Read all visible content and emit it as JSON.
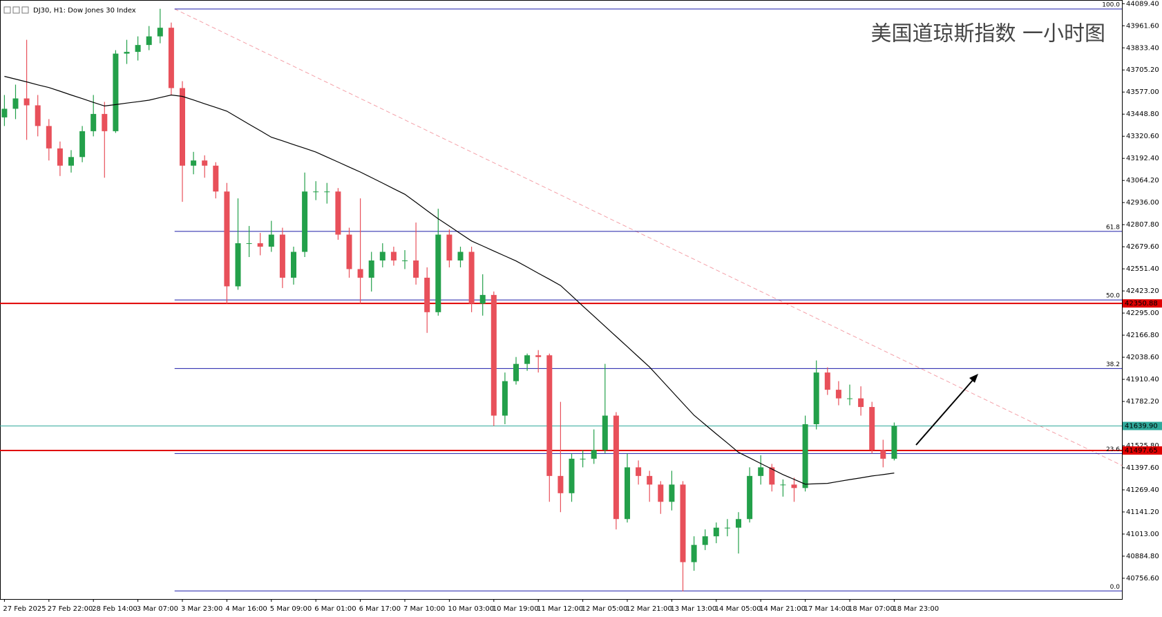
{
  "chart_data": {
    "type": "candlestick",
    "title": "DJ30, H1: Dow Jones 30 Index",
    "annotation": "美国道琼斯指数 一小时图",
    "up_color": "#23a04a",
    "down_color": "#e8505a",
    "open": [
      43430,
      43480,
      43540,
      43500,
      43380,
      43250,
      43150,
      43200,
      43350,
      43450,
      43350,
      43800,
      43810,
      43850,
      43900,
      43950,
      43600,
      43150,
      43180,
      43150,
      43000,
      42450,
      42700,
      42700,
      42680,
      42750,
      42500,
      42650,
      43000,
      43000,
      43000,
      42750,
      42550,
      42500,
      42600,
      42650,
      42600,
      42600,
      42500,
      42300,
      42750,
      42600,
      42650,
      42350,
      42400,
      41700,
      41900,
      42000,
      42050,
      42050,
      41350,
      41250,
      41450,
      41450,
      41500,
      41700,
      41100,
      41400,
      41350,
      41300,
      41200,
      41300,
      40850,
      40950,
      41000,
      41050,
      41050,
      41100,
      41350,
      41400,
      41300,
      41300,
      41280,
      41650,
      41950,
      41850,
      41800,
      41800,
      41750,
      41500,
      41450
    ],
    "high": [
      43560,
      43620,
      43880,
      43560,
      43420,
      43290,
      43240,
      43380,
      43560,
      43520,
      43820,
      43880,
      43900,
      43960,
      44060,
      43980,
      43640,
      43230,
      43210,
      43170,
      43050,
      42960,
      42800,
      42760,
      42830,
      42790,
      42680,
      43110,
      43060,
      43050,
      43020,
      42790,
      42960,
      42650,
      42700,
      42680,
      42660,
      42820,
      42560,
      42900,
      42780,
      42680,
      42680,
      42520,
      42420,
      41950,
      42040,
      42060,
      42080,
      42060,
      41780,
      41480,
      41500,
      41620,
      42000,
      41720,
      41480,
      41440,
      41380,
      41320,
      41380,
      41320,
      41000,
      41040,
      41080,
      41100,
      41140,
      41400,
      41470,
      41420,
      41330,
      41340,
      41700,
      42020,
      41980,
      41900,
      41880,
      41870,
      41780,
      41560,
      41660
    ],
    "low": [
      43380,
      43420,
      43300,
      43320,
      43180,
      43090,
      43110,
      43170,
      43320,
      43080,
      43340,
      43740,
      43760,
      43820,
      43860,
      43560,
      42940,
      43100,
      43080,
      42960,
      42350,
      42430,
      42620,
      42630,
      42650,
      42440,
      42460,
      42620,
      42950,
      42930,
      42720,
      42500,
      42350,
      42420,
      42560,
      42570,
      42550,
      42460,
      42180,
      42280,
      42560,
      42560,
      42300,
      42280,
      41640,
      41650,
      41880,
      41960,
      41950,
      41200,
      41140,
      41200,
      41400,
      41420,
      41480,
      41040,
      41080,
      41300,
      41200,
      41130,
      41150,
      40680,
      40800,
      40920,
      40960,
      41000,
      40900,
      41080,
      41300,
      41260,
      41230,
      41200,
      41260,
      41620,
      41820,
      41760,
      41760,
      41700,
      41480,
      41400,
      41440
    ],
    "close": [
      43480,
      43540,
      43500,
      43380,
      43250,
      43150,
      43200,
      43350,
      43450,
      43350,
      43800,
      43810,
      43850,
      43900,
      43950,
      43600,
      43150,
      43180,
      43150,
      43000,
      42450,
      42700,
      42700,
      42680,
      42750,
      42500,
      42650,
      43000,
      43000,
      43000,
      42750,
      42550,
      42500,
      42600,
      42650,
      42600,
      42600,
      42500,
      42300,
      42750,
      42600,
      42650,
      42350,
      42400,
      41700,
      41900,
      42000,
      42050,
      42040,
      41350,
      41250,
      41450,
      41450,
      41500,
      41700,
      41100,
      41400,
      41350,
      41300,
      41200,
      41300,
      40850,
      40950,
      41000,
      41050,
      41050,
      41100,
      41350,
      41400,
      41300,
      41300,
      41280,
      41650,
      41950,
      41850,
      41800,
      41800,
      41750,
      41500,
      41450,
      41640
    ],
    "ma": {
      "color": "#000000",
      "values": [
        43668,
        43652,
        43636,
        43619,
        43603,
        43582,
        43560,
        43539,
        43517,
        43496,
        43504,
        43513,
        43521,
        43530,
        43545,
        43560,
        43552,
        43531,
        43509,
        43488,
        43466,
        43428,
        43390,
        43353,
        43315,
        43294,
        43272,
        43251,
        43229,
        43200,
        43171,
        43142,
        43113,
        43081,
        43049,
        43016,
        42984,
        42937,
        42889,
        42842,
        42799,
        42756,
        42713,
        42684,
        42655,
        42626,
        42597,
        42562,
        42526,
        42491,
        42455,
        42396,
        42336,
        42277,
        42218,
        42159,
        42100,
        42041,
        41982,
        41912,
        41842,
        41772,
        41702,
        41648,
        41594,
        41541,
        41487,
        41455,
        41422,
        41390,
        41358,
        41330,
        41302,
        41305,
        41307,
        41318,
        41329,
        41339,
        41350,
        41358,
        41367
      ]
    },
    "xticks": [
      {
        "value": 0,
        "label": "27 Feb 2025"
      },
      {
        "value": 4,
        "label": "27 Feb 22:00"
      },
      {
        "value": 8,
        "label": "28 Feb 14:00"
      },
      {
        "value": 12,
        "label": "3 Mar 07:00"
      },
      {
        "value": 16,
        "label": "3 Mar 23:00"
      },
      {
        "value": 20,
        "label": "4 Mar 16:00"
      },
      {
        "value": 24,
        "label": "5 Mar 09:00"
      },
      {
        "value": 28,
        "label": "6 Mar 01:00"
      },
      {
        "value": 32,
        "label": "6 Mar 17:00"
      },
      {
        "value": 36,
        "label": "7 Mar 10:00"
      },
      {
        "value": 40,
        "label": "10 Mar 03:00"
      },
      {
        "value": 44,
        "label": "10 Mar 19:00"
      },
      {
        "value": 48,
        "label": "11 Mar 12:00"
      },
      {
        "value": 52,
        "label": "12 Mar 05:00"
      },
      {
        "value": 56,
        "label": "12 Mar 21:00"
      },
      {
        "value": 60,
        "label": "13 Mar 13:00"
      },
      {
        "value": 64,
        "label": "14 Mar 05:00"
      },
      {
        "value": 68,
        "label": "14 Mar 21:00"
      },
      {
        "value": 72,
        "label": "17 Mar 14:00"
      },
      {
        "value": 76,
        "label": "18 Mar 07:00"
      },
      {
        "value": 80,
        "label": "18 Mar 23:00"
      }
    ],
    "ylim": [
      40636,
      44111
    ],
    "yticks": [
      {
        "value": 44089.4,
        "label": "44089.40"
      },
      {
        "value": 43961.6,
        "label": "43961.60"
      },
      {
        "value": 43833.4,
        "label": "43833.40"
      },
      {
        "value": 43705.2,
        "label": "43705.20"
      },
      {
        "value": 43577,
        "label": "43577.00"
      },
      {
        "value": 43448.8,
        "label": "43448.80"
      },
      {
        "value": 43320.6,
        "label": "43320.60"
      },
      {
        "value": 43192.4,
        "label": "43192.40"
      },
      {
        "value": 43064.2,
        "label": "43064.20"
      },
      {
        "value": 42936,
        "label": "42936.00"
      },
      {
        "value": 42807.8,
        "label": "42807.80"
      },
      {
        "value": 42679.6,
        "label": "42679.60"
      },
      {
        "value": 42551.4,
        "label": "42551.40"
      },
      {
        "value": 42423.2,
        "label": "42423.20"
      },
      {
        "value": 42295,
        "label": "42295.00"
      },
      {
        "value": 42166.8,
        "label": "42166.80"
      },
      {
        "value": 42038.6,
        "label": "42038.60"
      },
      {
        "value": 41910.4,
        "label": "41910.40"
      },
      {
        "value": 41782.2,
        "label": "41782.20"
      },
      {
        "value": 41525.8,
        "label": "41525.80"
      },
      {
        "value": 41397.6,
        "label": "41397.60"
      },
      {
        "value": 41269.4,
        "label": "41269.40"
      },
      {
        "value": 41141.2,
        "label": "41141.20"
      },
      {
        "value": 41013,
        "label": "41013.00"
      },
      {
        "value": 40884.8,
        "label": "40884.80"
      },
      {
        "value": 40756.6,
        "label": "40756.60"
      }
    ],
    "fibonacci": {
      "color": "#1a1aa8",
      "levels": [
        {
          "value": 44059,
          "label": "100.0"
        },
        {
          "value": 42769,
          "label": "61.8"
        },
        {
          "value": 42371,
          "label": "50.0"
        },
        {
          "value": 41973,
          "label": "38.2"
        },
        {
          "value": 41480,
          "label": "23.6"
        },
        {
          "value": 40683,
          "label": "0.0"
        }
      ]
    },
    "lines": [
      {
        "value": 42350.88,
        "color": "#e00000"
      },
      {
        "value": 41497.65,
        "color": "#e00000"
      }
    ],
    "price_line": {
      "value": 41639.9,
      "label": "41639.90",
      "color": "#2fa99b"
    },
    "trendline": {
      "x": [
        15.3,
        100.5
      ],
      "y": [
        44059,
        41410
      ],
      "color": "#f4a0a8"
    }
  }
}
